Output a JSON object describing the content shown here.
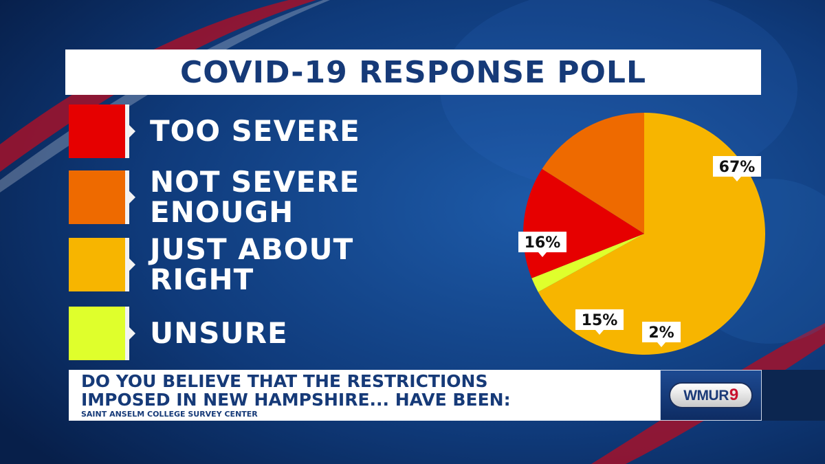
{
  "title": "COVID-19 RESPONSE POLL",
  "question": "DO YOU BELIEVE THAT THE RESTRICTIONS\nIMPOSED IN NEW HAMPSHIRE... HAVE BEEN:",
  "source": "SAINT ANSELM COLLEGE SURVEY CENTER",
  "logo": {
    "text": "WMUR",
    "number": "9"
  },
  "colors": {
    "too_severe": "#e60000",
    "not_severe_enough": "#ee6a00",
    "just_about_right": "#f7b500",
    "unsure": "#dfff2c",
    "title_text": "#163a78"
  },
  "legend": [
    {
      "label": "TOO SEVERE",
      "color": "#e60000"
    },
    {
      "label": "NOT SEVERE\nENOUGH",
      "color": "#ee6a00"
    },
    {
      "label": "JUST ABOUT\nRIGHT",
      "color": "#f7b500"
    },
    {
      "label": "UNSURE",
      "color": "#dfff2c"
    }
  ],
  "chart_data": {
    "type": "pie",
    "title": "COVID-19 RESPONSE POLL",
    "categories": [
      "TOO SEVERE",
      "NOT SEVERE ENOUGH",
      "JUST ABOUT RIGHT",
      "UNSURE"
    ],
    "values": [
      15,
      16,
      67,
      2
    ],
    "labels": [
      "15%",
      "16%",
      "67%",
      "2%"
    ],
    "colors": [
      "#e60000",
      "#ee6a00",
      "#f7b500",
      "#dfff2c"
    ],
    "legend_position": "left"
  }
}
